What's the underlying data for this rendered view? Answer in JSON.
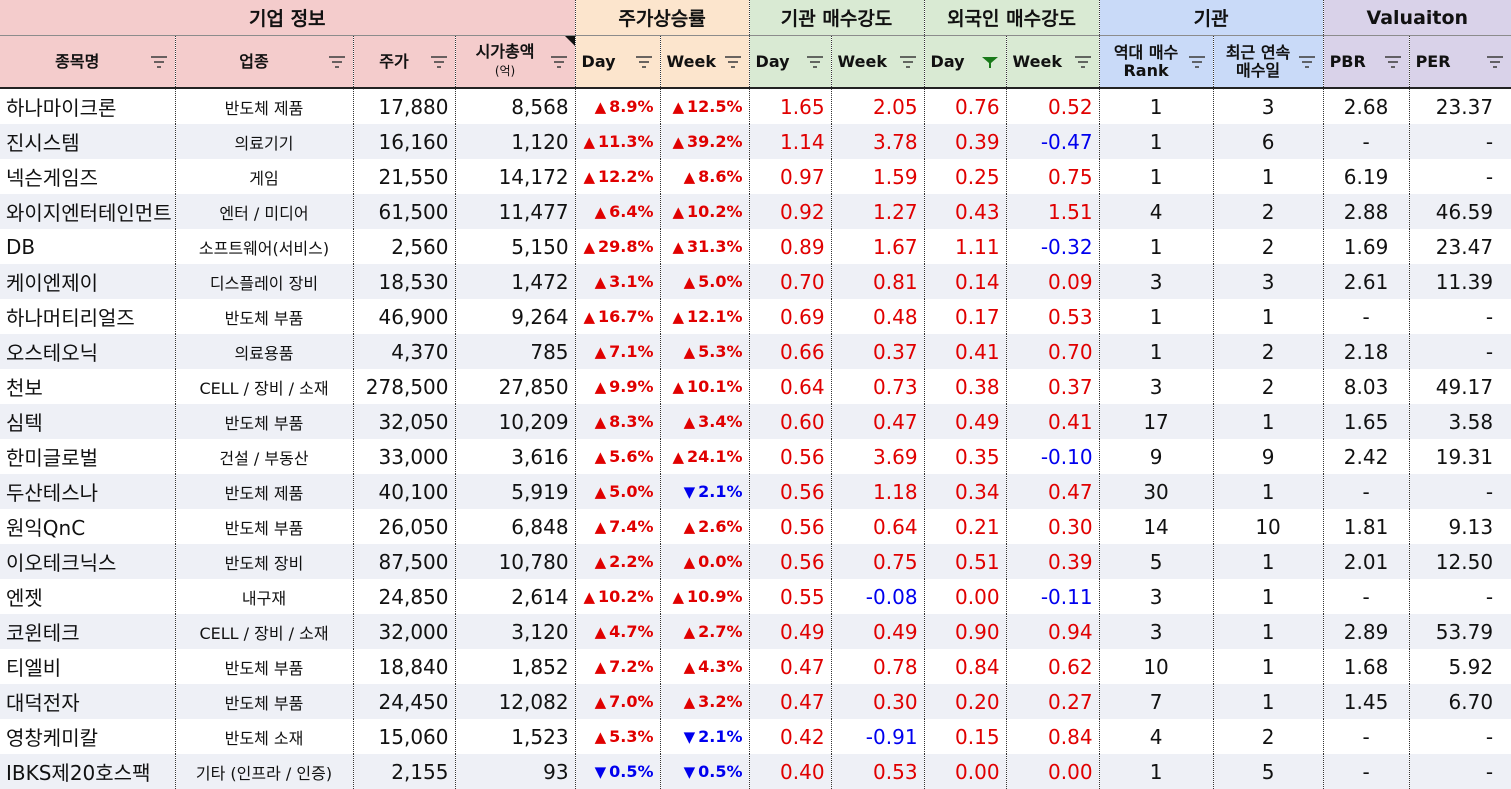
{
  "groups": {
    "corp": "기업 정보",
    "price": "주가상승률",
    "inst": "기관 매수강도",
    "frgn": "외국인 매수강도",
    "rank": "기관",
    "val": "Valuaiton"
  },
  "headers": {
    "name": "종목명",
    "industry": "업종",
    "price": "주가",
    "mcap_line1": "시가총액",
    "mcap_line2": "(억)",
    "p_day": "Day",
    "p_week": "Week",
    "i_day": "Day",
    "i_week": "Week",
    "f_day": "Day",
    "f_week": "Week",
    "rank_line1": "역대 매수",
    "rank_line2": "Rank",
    "streak_line1": "최근 연속",
    "streak_line2": "매수일",
    "pbr": "PBR",
    "per": "PER"
  },
  "colors": {
    "up": "#e00000",
    "down": "#0000ee",
    "filter_active": "#1a7a1a",
    "filter_icon": "#444444"
  },
  "rows": [
    {
      "name": "하나마이크론",
      "industry": "반도체 제품",
      "price": "17,880",
      "mcap": "8,568",
      "pday": "8.9%",
      "pday_dir": "up",
      "pweek": "12.5%",
      "pweek_dir": "up",
      "iday": "1.65",
      "iweek": "2.05",
      "fday": "0.76",
      "fweek": "0.52",
      "rank": "1",
      "streak": "3",
      "pbr": "2.68",
      "per": "23.37"
    },
    {
      "name": "진시스템",
      "industry": "의료기기",
      "price": "16,160",
      "mcap": "1,120",
      "pday": "11.3%",
      "pday_dir": "up",
      "pweek": "39.2%",
      "pweek_dir": "up",
      "iday": "1.14",
      "iweek": "3.78",
      "fday": "0.39",
      "fweek": "-0.47",
      "rank": "1",
      "streak": "6",
      "pbr": "-",
      "per": "-"
    },
    {
      "name": "넥슨게임즈",
      "industry": "게임",
      "price": "21,550",
      "mcap": "14,172",
      "pday": "12.2%",
      "pday_dir": "up",
      "pweek": "8.6%",
      "pweek_dir": "up",
      "iday": "0.97",
      "iweek": "1.59",
      "fday": "0.25",
      "fweek": "0.75",
      "rank": "1",
      "streak": "1",
      "pbr": "6.19",
      "per": "-"
    },
    {
      "name": "와이지엔터테인먼트",
      "industry": "엔터 / 미디어",
      "price": "61,500",
      "mcap": "11,477",
      "pday": "6.4%",
      "pday_dir": "up",
      "pweek": "10.2%",
      "pweek_dir": "up",
      "iday": "0.92",
      "iweek": "1.27",
      "fday": "0.43",
      "fweek": "1.51",
      "rank": "4",
      "streak": "2",
      "pbr": "2.88",
      "per": "46.59"
    },
    {
      "name": "DB",
      "industry": "소프트웨어(서비스)",
      "price": "2,560",
      "mcap": "5,150",
      "pday": "29.8%",
      "pday_dir": "up",
      "pweek": "31.3%",
      "pweek_dir": "up",
      "iday": "0.89",
      "iweek": "1.67",
      "fday": "1.11",
      "fweek": "-0.32",
      "rank": "1",
      "streak": "2",
      "pbr": "1.69",
      "per": "23.47"
    },
    {
      "name": "케이엔제이",
      "industry": "디스플레이 장비",
      "price": "18,530",
      "mcap": "1,472",
      "pday": "3.1%",
      "pday_dir": "up",
      "pweek": "5.0%",
      "pweek_dir": "up",
      "iday": "0.70",
      "iweek": "0.81",
      "fday": "0.14",
      "fweek": "0.09",
      "rank": "3",
      "streak": "3",
      "pbr": "2.61",
      "per": "11.39"
    },
    {
      "name": "하나머티리얼즈",
      "industry": "반도체 부품",
      "price": "46,900",
      "mcap": "9,264",
      "pday": "16.7%",
      "pday_dir": "up",
      "pweek": "12.1%",
      "pweek_dir": "up",
      "iday": "0.69",
      "iweek": "0.48",
      "fday": "0.17",
      "fweek": "0.53",
      "rank": "1",
      "streak": "1",
      "pbr": "-",
      "per": "-"
    },
    {
      "name": "오스테오닉",
      "industry": "의료용품",
      "price": "4,370",
      "mcap": "785",
      "pday": "7.1%",
      "pday_dir": "up",
      "pweek": "5.3%",
      "pweek_dir": "up",
      "iday": "0.66",
      "iweek": "0.37",
      "fday": "0.41",
      "fweek": "0.70",
      "rank": "1",
      "streak": "2",
      "pbr": "2.18",
      "per": "-"
    },
    {
      "name": "천보",
      "industry": "CELL / 장비 / 소재",
      "price": "278,500",
      "mcap": "27,850",
      "pday": "9.9%",
      "pday_dir": "up",
      "pweek": "10.1%",
      "pweek_dir": "up",
      "iday": "0.64",
      "iweek": "0.73",
      "fday": "0.38",
      "fweek": "0.37",
      "rank": "3",
      "streak": "2",
      "pbr": "8.03",
      "per": "49.17"
    },
    {
      "name": "심텍",
      "industry": "반도체 부품",
      "price": "32,050",
      "mcap": "10,209",
      "pday": "8.3%",
      "pday_dir": "up",
      "pweek": "3.4%",
      "pweek_dir": "up",
      "iday": "0.60",
      "iweek": "0.47",
      "fday": "0.49",
      "fweek": "0.41",
      "rank": "17",
      "streak": "1",
      "pbr": "1.65",
      "per": "3.58"
    },
    {
      "name": "한미글로벌",
      "industry": "건설 / 부동산",
      "price": "33,000",
      "mcap": "3,616",
      "pday": "5.6%",
      "pday_dir": "up",
      "pweek": "24.1%",
      "pweek_dir": "up",
      "iday": "0.56",
      "iweek": "3.69",
      "fday": "0.35",
      "fweek": "-0.10",
      "rank": "9",
      "streak": "9",
      "pbr": "2.42",
      "per": "19.31"
    },
    {
      "name": "두산테스나",
      "industry": "반도체 제품",
      "price": "40,100",
      "mcap": "5,919",
      "pday": "5.0%",
      "pday_dir": "up",
      "pweek": "2.1%",
      "pweek_dir": "down",
      "iday": "0.56",
      "iweek": "1.18",
      "fday": "0.34",
      "fweek": "0.47",
      "rank": "30",
      "streak": "1",
      "pbr": "-",
      "per": "-"
    },
    {
      "name": "원익QnC",
      "industry": "반도체 부품",
      "price": "26,050",
      "mcap": "6,848",
      "pday": "7.4%",
      "pday_dir": "up",
      "pweek": "2.6%",
      "pweek_dir": "up",
      "iday": "0.56",
      "iweek": "0.64",
      "fday": "0.21",
      "fweek": "0.30",
      "rank": "14",
      "streak": "10",
      "pbr": "1.81",
      "per": "9.13"
    },
    {
      "name": "이오테크닉스",
      "industry": "반도체 장비",
      "price": "87,500",
      "mcap": "10,780",
      "pday": "2.2%",
      "pday_dir": "up",
      "pweek": "0.0%",
      "pweek_dir": "up",
      "iday": "0.56",
      "iweek": "0.75",
      "fday": "0.51",
      "fweek": "0.39",
      "rank": "5",
      "streak": "1",
      "pbr": "2.01",
      "per": "12.50"
    },
    {
      "name": "엔젯",
      "industry": "내구재",
      "price": "24,850",
      "mcap": "2,614",
      "pday": "10.2%",
      "pday_dir": "up",
      "pweek": "10.9%",
      "pweek_dir": "up",
      "iday": "0.55",
      "iweek": "-0.08",
      "fday": "0.00",
      "fweek": "-0.11",
      "rank": "3",
      "streak": "1",
      "pbr": "-",
      "per": "-"
    },
    {
      "name": "코윈테크",
      "industry": "CELL / 장비 / 소재",
      "price": "32,000",
      "mcap": "3,120",
      "pday": "4.7%",
      "pday_dir": "up",
      "pweek": "2.7%",
      "pweek_dir": "up",
      "iday": "0.49",
      "iweek": "0.49",
      "fday": "0.90",
      "fweek": "0.94",
      "rank": "3",
      "streak": "1",
      "pbr": "2.89",
      "per": "53.79"
    },
    {
      "name": "티엘비",
      "industry": "반도체 부품",
      "price": "18,840",
      "mcap": "1,852",
      "pday": "7.2%",
      "pday_dir": "up",
      "pweek": "4.3%",
      "pweek_dir": "up",
      "iday": "0.47",
      "iweek": "0.78",
      "fday": "0.84",
      "fweek": "0.62",
      "rank": "10",
      "streak": "1",
      "pbr": "1.68",
      "per": "5.92"
    },
    {
      "name": "대덕전자",
      "industry": "반도체 부품",
      "price": "24,450",
      "mcap": "12,082",
      "pday": "7.0%",
      "pday_dir": "up",
      "pweek": "3.2%",
      "pweek_dir": "up",
      "iday": "0.47",
      "iweek": "0.30",
      "fday": "0.20",
      "fweek": "0.27",
      "rank": "7",
      "streak": "1",
      "pbr": "1.45",
      "per": "6.70"
    },
    {
      "name": "영창케미칼",
      "industry": "반도체 소재",
      "price": "15,060",
      "mcap": "1,523",
      "pday": "5.3%",
      "pday_dir": "up",
      "pweek": "2.1%",
      "pweek_dir": "down",
      "iday": "0.42",
      "iweek": "-0.91",
      "fday": "0.15",
      "fweek": "0.84",
      "rank": "4",
      "streak": "2",
      "pbr": "-",
      "per": "-"
    },
    {
      "name": "IBKS제20호스팩",
      "industry": "기타 (인프라 / 인증)",
      "price": "2,155",
      "mcap": "93",
      "pday": "0.5%",
      "pday_dir": "down",
      "pweek": "0.5%",
      "pweek_dir": "down",
      "iday": "0.40",
      "iweek": "0.53",
      "fday": "0.00",
      "fweek": "0.00",
      "rank": "1",
      "streak": "5",
      "pbr": "-",
      "per": "-"
    }
  ]
}
